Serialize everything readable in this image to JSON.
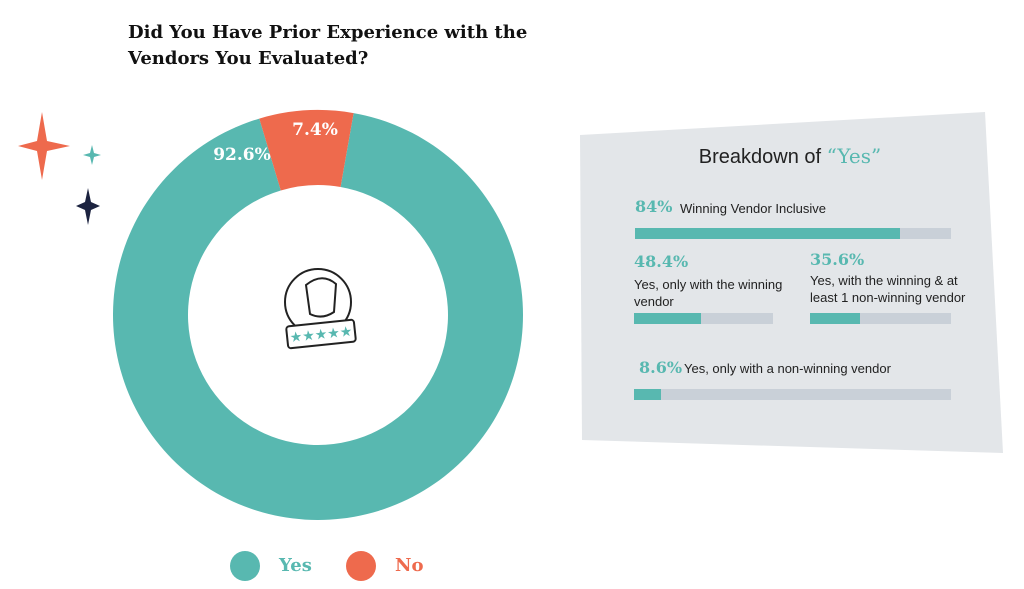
{
  "chart_data": [
    {
      "type": "donut",
      "title": "Did You Have Prior Experience with the Vendors You Evaluated?",
      "categories": [
        "Yes",
        "No"
      ],
      "values": [
        92.6,
        7.4
      ],
      "value_labels": [
        "92.6%",
        "7.4%"
      ],
      "colors": [
        "#58b8b0",
        "#ee6a4d"
      ]
    },
    {
      "type": "bar",
      "title": "Breakdown of",
      "title_emphasis": "“Yes”",
      "categories": [
        "Winning Vendor Inclusive",
        "Yes, only with the winning vendor",
        "Yes, with the winning & at least 1 non-winning vendor",
        "Yes, only with a non-winning vendor"
      ],
      "values": [
        84,
        48.4,
        35.6,
        8.6
      ],
      "value_labels": [
        "84%",
        "48.4%",
        "35.6%",
        "8.6%"
      ],
      "xlim": [
        0,
        100
      ],
      "color": "#58b8b0"
    }
  ]
}
